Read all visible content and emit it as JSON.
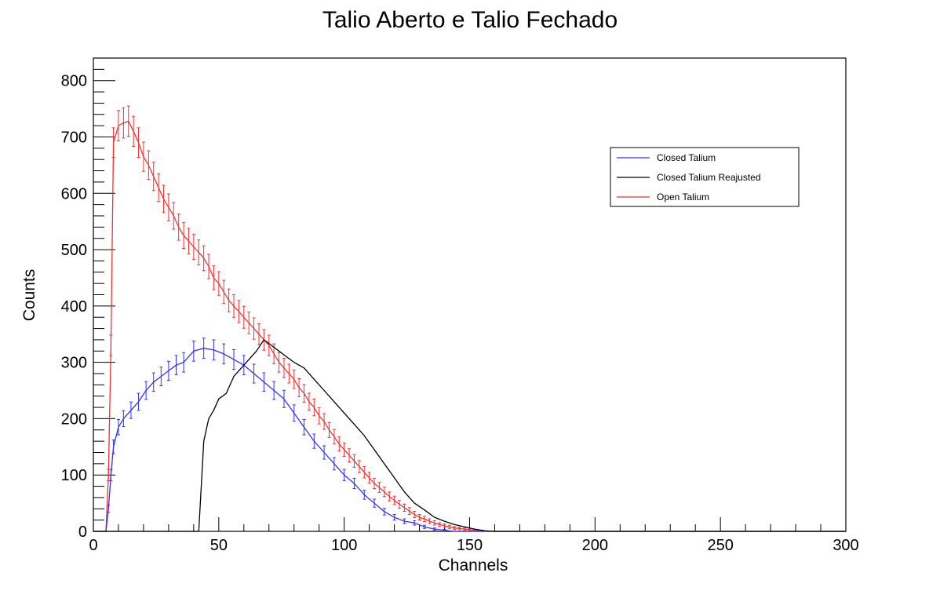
{
  "chart_data": {
    "type": "line",
    "title": "Talio Aberto e Talio Fechado",
    "xlabel": "Channels",
    "ylabel": "Counts",
    "xlim": [
      0,
      300
    ],
    "ylim": [
      0,
      840
    ],
    "x_ticks": [
      "0",
      "50",
      "100",
      "150",
      "200",
      "250",
      "300"
    ],
    "y_ticks": [
      "0",
      "100",
      "200",
      "300",
      "400",
      "500",
      "600",
      "700",
      "800"
    ],
    "grid": false,
    "legend_position": "top-right",
    "series": [
      {
        "name": "Closed Talium",
        "color": "#3333ee",
        "error_bars": true,
        "points": [
          [
            0,
            0
          ],
          [
            5,
            0
          ],
          [
            6,
            40
          ],
          [
            7,
            100
          ],
          [
            8,
            150
          ],
          [
            10,
            185
          ],
          [
            12,
            200
          ],
          [
            15,
            215
          ],
          [
            18,
            230
          ],
          [
            21,
            250
          ],
          [
            24,
            265
          ],
          [
            27,
            275
          ],
          [
            30,
            285
          ],
          [
            33,
            295
          ],
          [
            36,
            300
          ],
          [
            40,
            320
          ],
          [
            44,
            325
          ],
          [
            48,
            322
          ],
          [
            52,
            315
          ],
          [
            56,
            305
          ],
          [
            60,
            295
          ],
          [
            64,
            280
          ],
          [
            68,
            265
          ],
          [
            72,
            250
          ],
          [
            76,
            235
          ],
          [
            80,
            210
          ],
          [
            84,
            185
          ],
          [
            88,
            160
          ],
          [
            92,
            140
          ],
          [
            96,
            120
          ],
          [
            100,
            100
          ],
          [
            104,
            85
          ],
          [
            108,
            65
          ],
          [
            112,
            50
          ],
          [
            116,
            35
          ],
          [
            120,
            25
          ],
          [
            124,
            18
          ],
          [
            128,
            15
          ],
          [
            132,
            8
          ],
          [
            136,
            4
          ],
          [
            140,
            2
          ],
          [
            144,
            0
          ],
          [
            150,
            0
          ],
          [
            300,
            0
          ]
        ]
      },
      {
        "name": "Closed Talium Reajusted",
        "color": "#000000",
        "error_bars": false,
        "points": [
          [
            0,
            0
          ],
          [
            42,
            0
          ],
          [
            43,
            80
          ],
          [
            44,
            160
          ],
          [
            46,
            200
          ],
          [
            48,
            215
          ],
          [
            50,
            235
          ],
          [
            53,
            245
          ],
          [
            56,
            275
          ],
          [
            59,
            290
          ],
          [
            62,
            305
          ],
          [
            65,
            320
          ],
          [
            68,
            340
          ],
          [
            71,
            330
          ],
          [
            74,
            320
          ],
          [
            77,
            310
          ],
          [
            80,
            300
          ],
          [
            84,
            290
          ],
          [
            88,
            270
          ],
          [
            92,
            250
          ],
          [
            96,
            230
          ],
          [
            100,
            210
          ],
          [
            104,
            190
          ],
          [
            108,
            170
          ],
          [
            112,
            145
          ],
          [
            116,
            120
          ],
          [
            120,
            95
          ],
          [
            124,
            70
          ],
          [
            128,
            50
          ],
          [
            132,
            38
          ],
          [
            136,
            25
          ],
          [
            140,
            18
          ],
          [
            144,
            12
          ],
          [
            148,
            8
          ],
          [
            152,
            4
          ],
          [
            156,
            1
          ],
          [
            160,
            0
          ],
          [
            300,
            0
          ]
        ]
      },
      {
        "name": "Open Talium",
        "color": "#ee3333",
        "error_bars": true,
        "points": [
          [
            0,
            0
          ],
          [
            5,
            0
          ],
          [
            6,
            100
          ],
          [
            7,
            330
          ],
          [
            8,
            690
          ],
          [
            10,
            720
          ],
          [
            12,
            725
          ],
          [
            14,
            728
          ],
          [
            16,
            710
          ],
          [
            18,
            690
          ],
          [
            20,
            665
          ],
          [
            22,
            650
          ],
          [
            24,
            630
          ],
          [
            26,
            610
          ],
          [
            28,
            590
          ],
          [
            30,
            575
          ],
          [
            32,
            560
          ],
          [
            34,
            540
          ],
          [
            36,
            525
          ],
          [
            38,
            515
          ],
          [
            40,
            505
          ],
          [
            42,
            495
          ],
          [
            44,
            485
          ],
          [
            46,
            470
          ],
          [
            48,
            450
          ],
          [
            50,
            440
          ],
          [
            52,
            425
          ],
          [
            54,
            410
          ],
          [
            56,
            400
          ],
          [
            58,
            390
          ],
          [
            60,
            380
          ],
          [
            62,
            370
          ],
          [
            64,
            360
          ],
          [
            66,
            350
          ],
          [
            68,
            340
          ],
          [
            70,
            330
          ],
          [
            72,
            315
          ],
          [
            74,
            300
          ],
          [
            76,
            290
          ],
          [
            78,
            280
          ],
          [
            80,
            270
          ],
          [
            82,
            255
          ],
          [
            84,
            245
          ],
          [
            86,
            230
          ],
          [
            88,
            220
          ],
          [
            90,
            205
          ],
          [
            92,
            195
          ],
          [
            94,
            180
          ],
          [
            96,
            168
          ],
          [
            98,
            155
          ],
          [
            100,
            145
          ],
          [
            102,
            135
          ],
          [
            104,
            125
          ],
          [
            106,
            115
          ],
          [
            108,
            105
          ],
          [
            110,
            95
          ],
          [
            112,
            85
          ],
          [
            114,
            78
          ],
          [
            116,
            70
          ],
          [
            118,
            62
          ],
          [
            120,
            55
          ],
          [
            122,
            48
          ],
          [
            124,
            42
          ],
          [
            126,
            36
          ],
          [
            128,
            30
          ],
          [
            130,
            25
          ],
          [
            132,
            22
          ],
          [
            134,
            18
          ],
          [
            136,
            15
          ],
          [
            138,
            12
          ],
          [
            140,
            10
          ],
          [
            142,
            8
          ],
          [
            144,
            6
          ],
          [
            146,
            5
          ],
          [
            148,
            4
          ],
          [
            150,
            3
          ],
          [
            152,
            2
          ],
          [
            155,
            1
          ],
          [
            160,
            0
          ],
          [
            300,
            0
          ]
        ]
      }
    ]
  }
}
